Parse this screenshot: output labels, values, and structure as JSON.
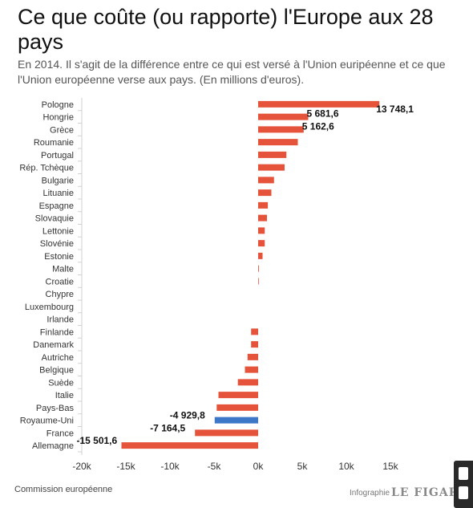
{
  "header": {
    "title": "Ce que coûte (ou rapporte) l'Europe aux 28 pays",
    "subtitle": "En 2014. Il s'agit de la différence entre ce qui est versé à l'Union euripéenne et ce que l'Union européenne verse aux pays. (En millions d'euros)."
  },
  "footer": {
    "source": "Commission européenne",
    "credit": "Infographie",
    "brand": "LE FIGARO"
  },
  "colors": {
    "bar": "#e5533a",
    "highlight": "#3d78c8",
    "axis_line": "#d0d0d0",
    "text": "#333333"
  },
  "chart_data": {
    "type": "bar",
    "orientation": "horizontal",
    "categories": [
      "Pologne",
      "Hongrie",
      "Grèce",
      "Roumanie",
      "Portugal",
      "Rép. Tchèque",
      "Bulgarie",
      "Lituanie",
      "Espagne",
      "Slovaquie",
      "Lettonie",
      "Slovénie",
      "Estonie",
      "Malte",
      "Croatie",
      "Chypre",
      "Luxembourg",
      "Irlande",
      "Finlande",
      "Danemark",
      "Autriche",
      "Belgique",
      "Suède",
      "Italie",
      "Pays-Bas",
      "Royaume-Uni",
      "France",
      "Allemagne"
    ],
    "values": [
      13748.1,
      5681.6,
      5162.6,
      4500,
      3200,
      3000,
      1800,
      1500,
      1100,
      1000,
      750,
      750,
      500,
      80,
      70,
      0,
      0,
      0,
      -800,
      -800,
      -1200,
      -1500,
      -2300,
      -4500,
      -4700,
      -4929.8,
      -7164.5,
      -15501.6
    ],
    "labels": [
      "13 748,1",
      "5 681,6",
      "5 162,6",
      "",
      "",
      "",
      "",
      "",
      "",
      "",
      "",
      "",
      "",
      "",
      "",
      "",
      "",
      "",
      "",
      "",
      "",
      "",
      "",
      "",
      "",
      "-4 929,8",
      "-7 164,5",
      "-15 501,6"
    ],
    "highlight": [
      "Royaume-Uni"
    ],
    "xlim": [
      -20000,
      20000
    ],
    "xticks": [
      -20000,
      -15000,
      -10000,
      -5000,
      0,
      5000,
      10000,
      15000
    ],
    "xtick_labels": [
      "-20k",
      "-15k",
      "-10k",
      "-5k",
      "0k",
      "5k",
      "10k",
      "15k"
    ],
    "grid": false
  },
  "overlay": {
    "edge_label": "2"
  }
}
